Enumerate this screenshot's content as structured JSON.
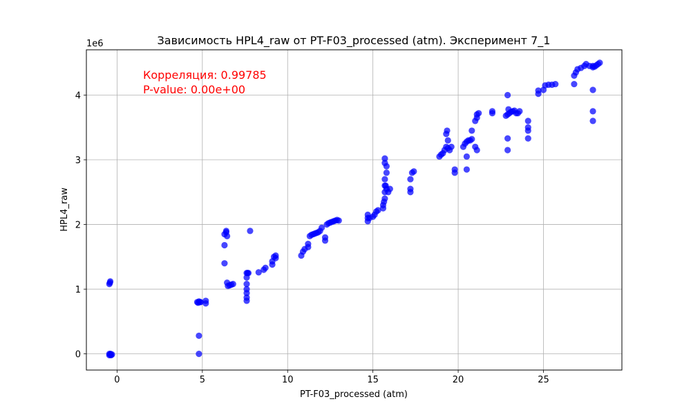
{
  "chart_data": {
    "type": "scatter",
    "title": "Зависимость HPL4_raw от PT-F03_processed (atm). Эксперимент 7_1",
    "xlabel": "PT-F03_processed (atm)",
    "ylabel": "HPL4_raw",
    "y_offset_label": "1e6",
    "xlim": [
      -1.8,
      29.6
    ],
    "ylim": [
      -0.25,
      4.7
    ],
    "x_ticks": [
      0,
      5,
      10,
      15,
      20,
      25
    ],
    "x_tick_labels": [
      "0",
      "5",
      "10",
      "15",
      "20",
      "25"
    ],
    "y_ticks": [
      0,
      1,
      2,
      3,
      4
    ],
    "y_tick_labels": [
      "0",
      "1",
      "2",
      "3",
      "4"
    ],
    "grid": true,
    "marker_color": "#0000ff",
    "annotations": [
      {
        "text": "Корреляция: 0.99785",
        "color": "#ff0000"
      },
      {
        "text": "P-value: 0.00e+00",
        "color": "#ff0000"
      }
    ],
    "series": [
      {
        "x": [
          -0.45,
          -0.45,
          -0.4,
          -0.38,
          -0.35,
          -0.45,
          -0.42,
          -0.4,
          -0.3,
          4.7,
          4.75,
          4.8,
          4.85,
          4.9,
          4.8,
          4.8,
          5.2,
          5.2,
          6.3,
          6.3,
          6.3,
          6.4,
          6.4,
          6.5,
          6.6,
          6.7,
          6.8,
          6.45,
          6.45,
          7.6,
          7.6,
          7.6,
          7.6,
          7.6,
          7.6,
          7.6,
          7.65,
          7.7,
          7.8,
          8.3,
          8.6,
          8.7,
          9.1,
          9.1,
          9.2,
          9.3,
          9.3,
          10.8,
          10.9,
          11.0,
          11.2,
          11.2,
          11.3,
          11.4,
          11.5,
          11.6,
          11.7,
          11.8,
          11.9,
          12.0,
          12.2,
          12.2,
          12.3,
          12.4,
          12.5,
          12.6,
          12.7,
          12.8,
          12.9,
          13.0,
          14.7,
          14.7,
          14.7,
          14.8,
          15.0,
          15.1,
          15.2,
          15.3,
          15.6,
          15.6,
          15.65,
          15.7,
          15.7,
          15.7,
          15.7,
          15.8,
          15.8,
          15.9,
          16.0,
          15.7,
          15.7,
          15.75,
          15.8,
          17.2,
          17.2,
          17.2,
          17.3,
          17.4,
          18.9,
          19.0,
          19.1,
          19.2,
          19.3,
          19.4,
          19.5,
          19.6,
          19.3,
          19.35,
          19.4,
          19.8,
          19.8,
          20.3,
          20.4,
          20.5,
          20.6,
          20.7,
          20.8,
          20.5,
          20.5,
          20.8,
          21.0,
          21.1,
          21.1,
          21.2,
          21.0,
          21.1,
          22.0,
          22.0,
          22.8,
          22.9,
          23.0,
          23.1,
          23.2,
          23.3,
          23.4,
          23.5,
          23.6,
          22.9,
          22.9,
          22.9,
          22.95,
          24.1,
          24.1,
          24.1,
          24.1,
          24.7,
          24.7,
          25.0,
          25.1,
          25.3,
          25.5,
          25.7,
          26.8,
          26.8,
          26.9,
          27.0,
          27.2,
          27.4,
          27.5,
          27.7,
          27.9,
          28.0,
          28.1,
          28.2,
          28.3,
          27.9,
          27.9,
          27.9,
          27.9
        ],
        "y": [
          -0.02,
          0.0,
          -0.01,
          0.0,
          -0.02,
          1.08,
          1.1,
          1.12,
          -0.01,
          0.8,
          0.79,
          0.81,
          0.8,
          0.8,
          0.28,
          0.0,
          0.78,
          0.82,
          1.68,
          1.4,
          1.85,
          1.88,
          1.9,
          1.05,
          1.06,
          1.07,
          1.08,
          1.82,
          1.1,
          0.82,
          0.87,
          0.94,
          1.0,
          1.08,
          1.18,
          1.25,
          1.25,
          1.25,
          1.9,
          1.26,
          1.3,
          1.33,
          1.38,
          1.43,
          1.5,
          1.48,
          1.52,
          1.52,
          1.58,
          1.62,
          1.65,
          1.7,
          1.82,
          1.84,
          1.85,
          1.86,
          1.87,
          1.88,
          1.9,
          1.95,
          1.75,
          1.8,
          2.0,
          2.02,
          2.03,
          2.04,
          2.05,
          2.06,
          2.07,
          2.06,
          2.05,
          2.1,
          2.15,
          2.1,
          2.12,
          2.15,
          2.2,
          2.22,
          2.25,
          2.3,
          2.35,
          2.4,
          2.5,
          2.6,
          2.7,
          2.8,
          2.9,
          2.5,
          2.55,
          2.95,
          3.02,
          2.6,
          2.55,
          2.5,
          2.55,
          2.7,
          2.8,
          2.82,
          3.05,
          3.08,
          3.1,
          3.15,
          3.2,
          3.18,
          3.15,
          3.2,
          3.4,
          3.45,
          3.3,
          2.8,
          2.85,
          3.2,
          3.25,
          3.28,
          3.3,
          3.3,
          3.32,
          2.85,
          3.05,
          3.45,
          3.6,
          3.65,
          3.7,
          3.72,
          3.2,
          3.15,
          3.72,
          3.75,
          3.68,
          3.7,
          3.72,
          3.74,
          3.75,
          3.76,
          3.72,
          3.72,
          3.75,
          4.0,
          3.15,
          3.33,
          3.78,
          3.33,
          3.45,
          3.5,
          3.6,
          4.02,
          4.07,
          4.08,
          4.15,
          4.16,
          4.16,
          4.17,
          4.17,
          4.3,
          4.35,
          4.4,
          4.42,
          4.45,
          4.48,
          4.45,
          4.43,
          4.44,
          4.46,
          4.48,
          4.5,
          4.08,
          3.75,
          3.6,
          4.45
        ]
      }
    ]
  }
}
